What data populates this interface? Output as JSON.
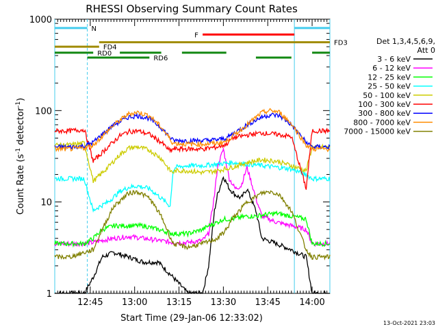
{
  "chart_data": {
    "type": "line",
    "title": "RHESSI Observing Summary Count Rates",
    "xlabel": "Start Time (29-Jan-06 12:33:02)",
    "ylabel_main": "Count Rate (s",
    "ylabel_sup1": "-1",
    "ylabel_mid": " detector",
    "ylabel_sup2": "-1",
    "ylabel_end": ")",
    "timestamp": "13-Oct-2021 23:03",
    "x_range_min": [
      0,
      93
    ],
    "y_log": true,
    "ylim": [
      1,
      1000
    ],
    "x_ticks": [
      {
        "label": "12:45",
        "min": 12
      },
      {
        "label": "13:00",
        "min": 27
      },
      {
        "label": "13:15",
        "min": 42
      },
      {
        "label": "13:30",
        "min": 57
      },
      {
        "label": "13:45",
        "min": 72
      },
      {
        "label": "14:00",
        "min": 87
      }
    ],
    "y_ticks": [
      {
        "label": "1",
        "value": 1
      },
      {
        "label": "10",
        "value": 10
      },
      {
        "label": "100",
        "value": 100
      },
      {
        "label": "1000",
        "value": 1000
      }
    ],
    "legend_header": [
      "Det 1,3,4,5,6,9,",
      "Att 0"
    ],
    "series": [
      {
        "name": "3 - 6 keV",
        "color": "#000000",
        "x": [
          0,
          5,
          10,
          13,
          16,
          20,
          25,
          30,
          35,
          40,
          45,
          50,
          52,
          54,
          55,
          57,
          59,
          61,
          63,
          65,
          68,
          70,
          75,
          80,
          85,
          87,
          90
        ],
        "y": [
          1,
          1,
          1,
          1.5,
          2.5,
          2.8,
          2.5,
          2.2,
          2.2,
          1.5,
          1,
          1,
          2,
          8,
          12,
          19,
          14,
          12,
          11,
          14,
          8,
          4,
          3.5,
          3,
          2.5,
          1,
          1
        ]
      },
      {
        "name": "6 - 12 keV",
        "color": "#ff00ff",
        "x": [
          0,
          5,
          10,
          13,
          16,
          20,
          25,
          30,
          35,
          40,
          45,
          50,
          52,
          54,
          55,
          57,
          59,
          61,
          63,
          65,
          68,
          70,
          75,
          80,
          85,
          87,
          90
        ],
        "y": [
          3.5,
          3.5,
          3.5,
          3.6,
          3.8,
          4,
          4.2,
          4,
          3.8,
          3.6,
          3.6,
          3.8,
          4.5,
          12,
          24,
          38,
          18,
          14,
          15,
          24,
          11,
          7,
          6,
          5.5,
          5,
          3.5,
          3.5
        ]
      },
      {
        "name": "12 - 25 keV",
        "color": "#00ff00",
        "x": [
          0,
          5,
          10,
          13,
          16,
          20,
          25,
          30,
          35,
          40,
          45,
          50,
          52,
          55,
          57,
          60,
          63,
          65,
          68,
          70,
          75,
          80,
          85,
          87,
          90
        ],
        "y": [
          3.5,
          3.5,
          3.5,
          4,
          5,
          5.5,
          5.5,
          5.5,
          5,
          4.5,
          4.5,
          5,
          5.5,
          6,
          6.5,
          6.5,
          6.8,
          7,
          7,
          7.2,
          7.5,
          7,
          6.5,
          3.5,
          3.5
        ]
      },
      {
        "name": "25 - 50 keV",
        "color": "#00ffff",
        "x": [
          0,
          5,
          10,
          13,
          14,
          18,
          22,
          25,
          28,
          32,
          36,
          39,
          40,
          41,
          45,
          50,
          55,
          60,
          65,
          70,
          75,
          80,
          85,
          87,
          90
        ],
        "y": [
          18,
          18,
          18,
          8,
          8.5,
          10,
          13,
          14.5,
          15,
          14,
          11,
          9,
          22,
          24,
          25,
          25,
          26,
          27,
          26,
          25,
          24,
          23,
          20,
          18,
          18
        ]
      },
      {
        "name": "50 - 100 keV",
        "color": "#cccc00",
        "x": [
          0,
          5,
          10,
          13,
          14,
          18,
          22,
          25,
          28,
          32,
          36,
          39,
          40,
          41,
          45,
          50,
          55,
          60,
          65,
          70,
          75,
          80,
          85,
          87,
          90
        ],
        "y": [
          42,
          42,
          44,
          17,
          18,
          24,
          33,
          39,
          40,
          37,
          30,
          22,
          21,
          22,
          22,
          21,
          22,
          24,
          27,
          29,
          28,
          25,
          22,
          40,
          40
        ]
      },
      {
        "name": "100 - 300 keV",
        "color": "#ff0000",
        "x": [
          0,
          5,
          10,
          13,
          14,
          18,
          22,
          25,
          28,
          32,
          36,
          39,
          40,
          41,
          45,
          50,
          55,
          58,
          60,
          65,
          70,
          75,
          80,
          85,
          87,
          90
        ],
        "y": [
          60,
          60,
          62,
          28,
          30,
          40,
          53,
          59,
          60,
          55,
          45,
          36,
          38,
          38,
          38,
          38,
          40,
          43,
          50,
          54,
          57,
          55,
          52,
          14,
          60,
          60
        ]
      },
      {
        "name": "300 - 800 keV",
        "color": "#0000ff",
        "x": [
          0,
          5,
          10,
          13,
          16,
          20,
          25,
          28,
          32,
          36,
          40,
          45,
          50,
          55,
          58,
          60,
          65,
          70,
          73,
          76,
          80,
          85,
          87,
          90
        ],
        "y": [
          40,
          40,
          41,
          45,
          55,
          70,
          85,
          88,
          82,
          65,
          47,
          47,
          47,
          48,
          50,
          55,
          70,
          85,
          90,
          88,
          70,
          45,
          40,
          40
        ]
      },
      {
        "name": "800 - 7000 keV",
        "color": "#ff8c00",
        "x": [
          0,
          5,
          10,
          13,
          16,
          20,
          25,
          28,
          32,
          36,
          40,
          45,
          50,
          55,
          58,
          60,
          65,
          70,
          73,
          76,
          80,
          85,
          87,
          90
        ],
        "y": [
          38,
          38,
          39,
          42,
          52,
          70,
          92,
          96,
          88,
          66,
          44,
          43,
          43,
          44,
          46,
          52,
          70,
          95,
          100,
          96,
          72,
          42,
          38,
          38
        ]
      },
      {
        "name": "7000 - 15000 keV",
        "color": "#808000",
        "x": [
          0,
          5,
          10,
          13,
          16,
          20,
          25,
          28,
          32,
          36,
          40,
          45,
          50,
          55,
          58,
          60,
          65,
          70,
          73,
          76,
          80,
          85,
          87,
          90
        ],
        "y": [
          2.5,
          2.5,
          2.8,
          3,
          5,
          9,
          12.5,
          13,
          11,
          7,
          3.5,
          3.2,
          3.5,
          4,
          5,
          6.5,
          10,
          12.5,
          13,
          12,
          8,
          3,
          2.5,
          2.5
        ]
      }
    ],
    "flag_bars": [
      {
        "label": "N",
        "color": "#44ccee",
        "segments": [
          [
            0,
            11
          ],
          [
            81,
            93
          ]
        ],
        "value": 800
      },
      {
        "label": "F",
        "color": "#ff0000",
        "segments": [
          [
            50,
            81
          ]
        ],
        "value": 680
      },
      {
        "label": "FD3",
        "color": "#a08b00",
        "segments": [
          [
            15,
            93
          ]
        ],
        "value": 560
      },
      {
        "label": "FD4",
        "color": "#a08b00",
        "segments": [
          [
            0,
            15
          ]
        ],
        "value": 500
      },
      {
        "label": "RD0",
        "color": "#118811",
        "segments": [
          [
            0,
            13
          ],
          [
            22,
            36
          ],
          [
            43,
            58
          ],
          [
            87,
            93
          ]
        ],
        "value": 430
      },
      {
        "label": "RD6",
        "color": "#118811",
        "segments": [
          [
            11,
            32
          ],
          [
            68,
            80
          ]
        ],
        "value": 380
      }
    ]
  }
}
